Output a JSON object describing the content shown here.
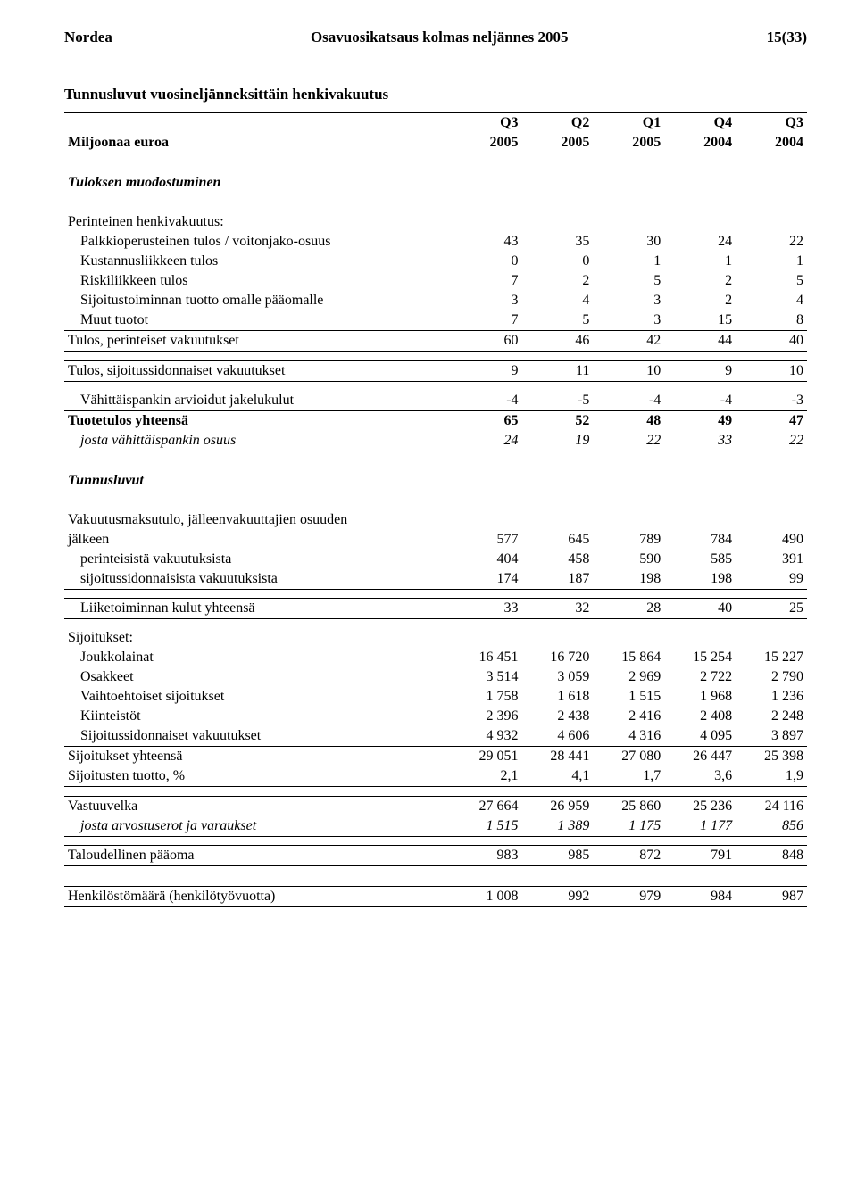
{
  "header": {
    "left": "Nordea",
    "center": "Osavuosikatsaus kolmas neljännes 2005",
    "right": "15(33)"
  },
  "title": "Tunnusluvut vuosineljänneksittäin henkivakuutus",
  "columns": {
    "row1": [
      "Q3",
      "Q2",
      "Q1",
      "Q4",
      "Q3"
    ],
    "row2_label": "Miljoonaa euroa",
    "row2": [
      "2005",
      "2005",
      "2005",
      "2004",
      "2004"
    ]
  },
  "s1": {
    "heading": "Tuloksen muodostuminen",
    "sub": "Perinteinen henkivakuutus:",
    "rows": [
      {
        "label": "Palkkioperusteinen tulos / voitonjako-osuus",
        "v": [
          "43",
          "35",
          "30",
          "24",
          "22"
        ]
      },
      {
        "label": "Kustannusliikkeen tulos",
        "v": [
          "0",
          "0",
          "1",
          "1",
          "1"
        ]
      },
      {
        "label": "Riskiliikkeen tulos",
        "v": [
          "7",
          "2",
          "5",
          "2",
          "5"
        ]
      },
      {
        "label": "Sijoitustoiminnan tuotto omalle pääomalle",
        "v": [
          "3",
          "4",
          "3",
          "2",
          "4"
        ]
      },
      {
        "label": "Muut tuotot",
        "v": [
          "7",
          "5",
          "3",
          "15",
          "8"
        ]
      }
    ],
    "total1": {
      "label": "Tulos, perinteiset vakuutukset",
      "v": [
        "60",
        "46",
        "42",
        "44",
        "40"
      ]
    },
    "total2": {
      "label": "Tulos, sijoitussidonnaiset vakuutukset",
      "v": [
        "9",
        "11",
        "10",
        "9",
        "10"
      ]
    },
    "rows2": [
      {
        "label": "Vähittäispankin arvioidut jakelukulut",
        "v": [
          "-4",
          "-5",
          "-4",
          "-4",
          "-3"
        ]
      }
    ],
    "total3": {
      "label": "Tuotetulos yhteensä",
      "v": [
        "65",
        "52",
        "48",
        "49",
        "47"
      ]
    },
    "ital": {
      "label": "josta vähittäispankin osuus",
      "v": [
        "24",
        "19",
        "22",
        "33",
        "22"
      ]
    }
  },
  "s2": {
    "heading": "Tunnusluvut",
    "lead_line1": "Vakuutusmaksutulo, jälleenvakuuttajien osuuden",
    "lead_line2": {
      "label": "jälkeen",
      "v": [
        "577",
        "645",
        "789",
        "784",
        "490"
      ]
    },
    "rows": [
      {
        "label": "perinteisistä vakuutuksista",
        "v": [
          "404",
          "458",
          "590",
          "585",
          "391"
        ]
      },
      {
        "label": "sijoitussidonnaisista vakuutuksista",
        "v": [
          "174",
          "187",
          "198",
          "198",
          "99"
        ]
      }
    ],
    "row_isolated": {
      "label": "Liiketoiminnan kulut yhteensä",
      "v": [
        "33",
        "32",
        "28",
        "40",
        "25"
      ]
    }
  },
  "s3": {
    "sub": "Sijoitukset:",
    "rows": [
      {
        "label": "Joukkolainat",
        "v": [
          "16 451",
          "16 720",
          "15 864",
          "15 254",
          "15 227"
        ]
      },
      {
        "label": "Osakkeet",
        "v": [
          "3 514",
          "3 059",
          "2 969",
          "2 722",
          "2 790"
        ]
      },
      {
        "label": "Vaihtoehtoiset sijoitukset",
        "v": [
          "1 758",
          "1 618",
          "1 515",
          "1 968",
          "1 236"
        ]
      },
      {
        "label": "Kiinteistöt",
        "v": [
          "2 396",
          "2 438",
          "2 416",
          "2 408",
          "2 248"
        ]
      },
      {
        "label": "Sijoitussidonnaiset vakuutukset",
        "v": [
          "4 932",
          "4 606",
          "4 316",
          "4 095",
          "3 897"
        ]
      }
    ],
    "total": {
      "label": "Sijoitukset yhteensä",
      "v": [
        "29 051",
        "28 441",
        "27 080",
        "26 447",
        "25 398"
      ]
    },
    "row_after": {
      "label": "Sijoitusten tuotto, %",
      "v": [
        "2,1",
        "4,1",
        "1,7",
        "3,6",
        "1,9"
      ]
    }
  },
  "s4": {
    "row1": {
      "label": "Vastuuvelka",
      "v": [
        "27 664",
        "26 959",
        "25 860",
        "25 236",
        "24 116"
      ]
    },
    "ital": {
      "label": "josta arvostuserot ja varaukset",
      "v": [
        "1 515",
        "1 389",
        "1 175",
        "1 177",
        "856"
      ]
    }
  },
  "s5": {
    "row": {
      "label": "Taloudellinen pääoma",
      "v": [
        "983",
        "985",
        "872",
        "791",
        "848"
      ]
    }
  },
  "s6": {
    "row": {
      "label": "Henkilöstömäärä (henkilötyövuotta)",
      "v": [
        "1 008",
        "992",
        "979",
        "984",
        "987"
      ]
    }
  }
}
